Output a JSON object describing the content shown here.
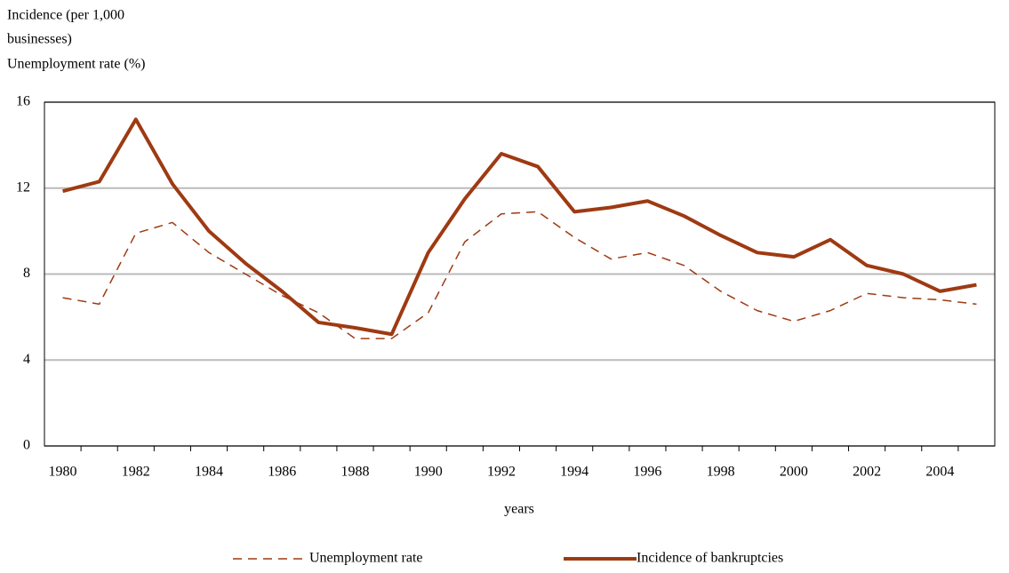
{
  "chart_data": {
    "type": "line",
    "ylabel": [
      "Incidence (per 1,000",
      "businesses)",
      "Unemployment rate (%)"
    ],
    "xlabel": "years",
    "categories": [
      "1980",
      null,
      "1982",
      null,
      "1984",
      null,
      "1986",
      null,
      "1988",
      null,
      "1990",
      null,
      "1992",
      null,
      "1994",
      null,
      "1996",
      null,
      "1998",
      null,
      "2000",
      null,
      "2002",
      null,
      "2004",
      null
    ],
    "series": [
      {
        "name": "Unemployment rate",
        "color": "#9e3a12",
        "dashed": true,
        "values": [
          6.9,
          6.6,
          9.9,
          10.4,
          9.0,
          8.0,
          7.0,
          6.2,
          5.0,
          5.0,
          6.2,
          9.5,
          10.8,
          10.9,
          9.7,
          8.7,
          9.0,
          8.4,
          7.2,
          6.3,
          5.8,
          6.3,
          7.1,
          6.9,
          6.8,
          6.6
        ]
      },
      {
        "name": "Incidence of bankruptcies",
        "color": "#9e3a12",
        "dashed": false,
        "values": [
          11.86,
          12.3,
          15.2,
          12.2,
          10.0,
          8.5,
          7.2,
          5.75,
          5.5,
          5.2,
          9.0,
          11.5,
          13.6,
          13.0,
          10.9,
          11.1,
          11.4,
          10.7,
          9.8,
          9.0,
          8.8,
          9.6,
          8.4,
          8.0,
          7.2,
          7.5
        ]
      }
    ],
    "ylim": [
      0,
      16
    ],
    "yticks": [
      0,
      4,
      8,
      12,
      16
    ],
    "grid": true,
    "legend": "bottom"
  }
}
